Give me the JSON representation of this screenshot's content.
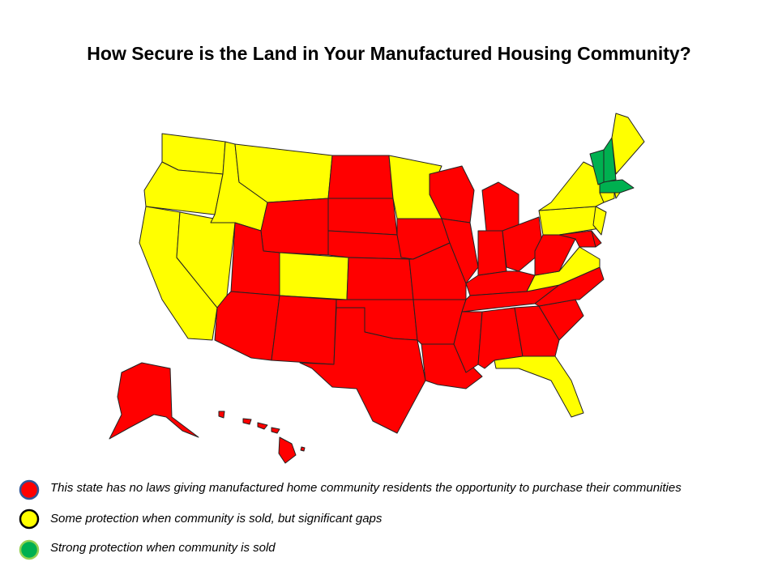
{
  "title": "How Secure is the Land in Your Manufactured Housing Community?",
  "legend": [
    {
      "label": "This state has no laws giving manufactured home community residents the opportunity to purchase their communities",
      "color": "#ff0000"
    },
    {
      "label": "Some protection when community is sold, but significant gaps",
      "color": "#ffff00"
    },
    {
      "label": "Strong protection when community is sold",
      "color": "#00b050"
    }
  ]
}
